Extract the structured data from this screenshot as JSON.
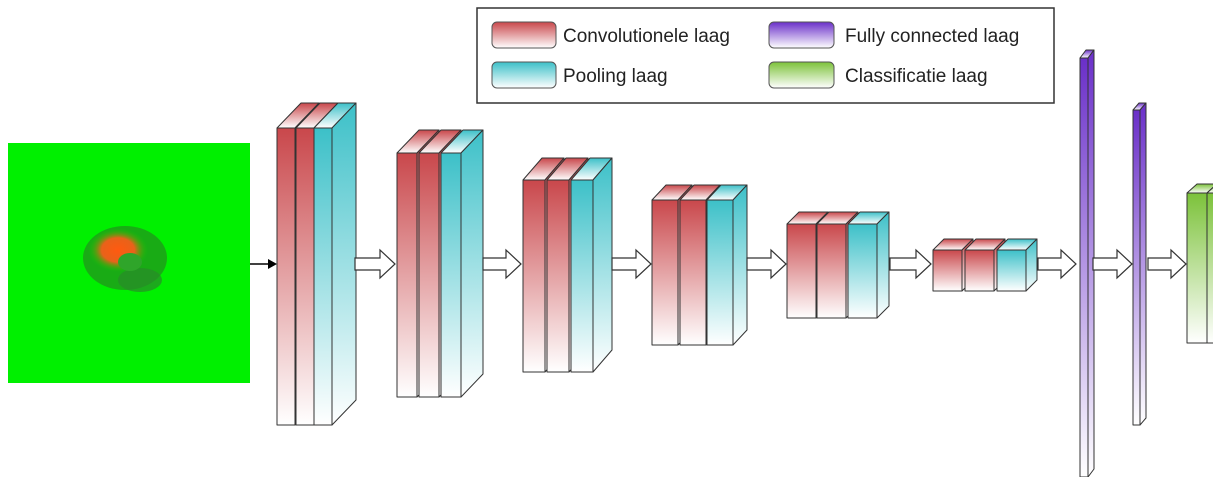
{
  "legend": {
    "items": [
      {
        "label": "Convolutionele laag"
      },
      {
        "label": "Pooling laag"
      },
      {
        "label": "Fully connected laag"
      },
      {
        "label": "Classificatie laag"
      }
    ]
  }
}
